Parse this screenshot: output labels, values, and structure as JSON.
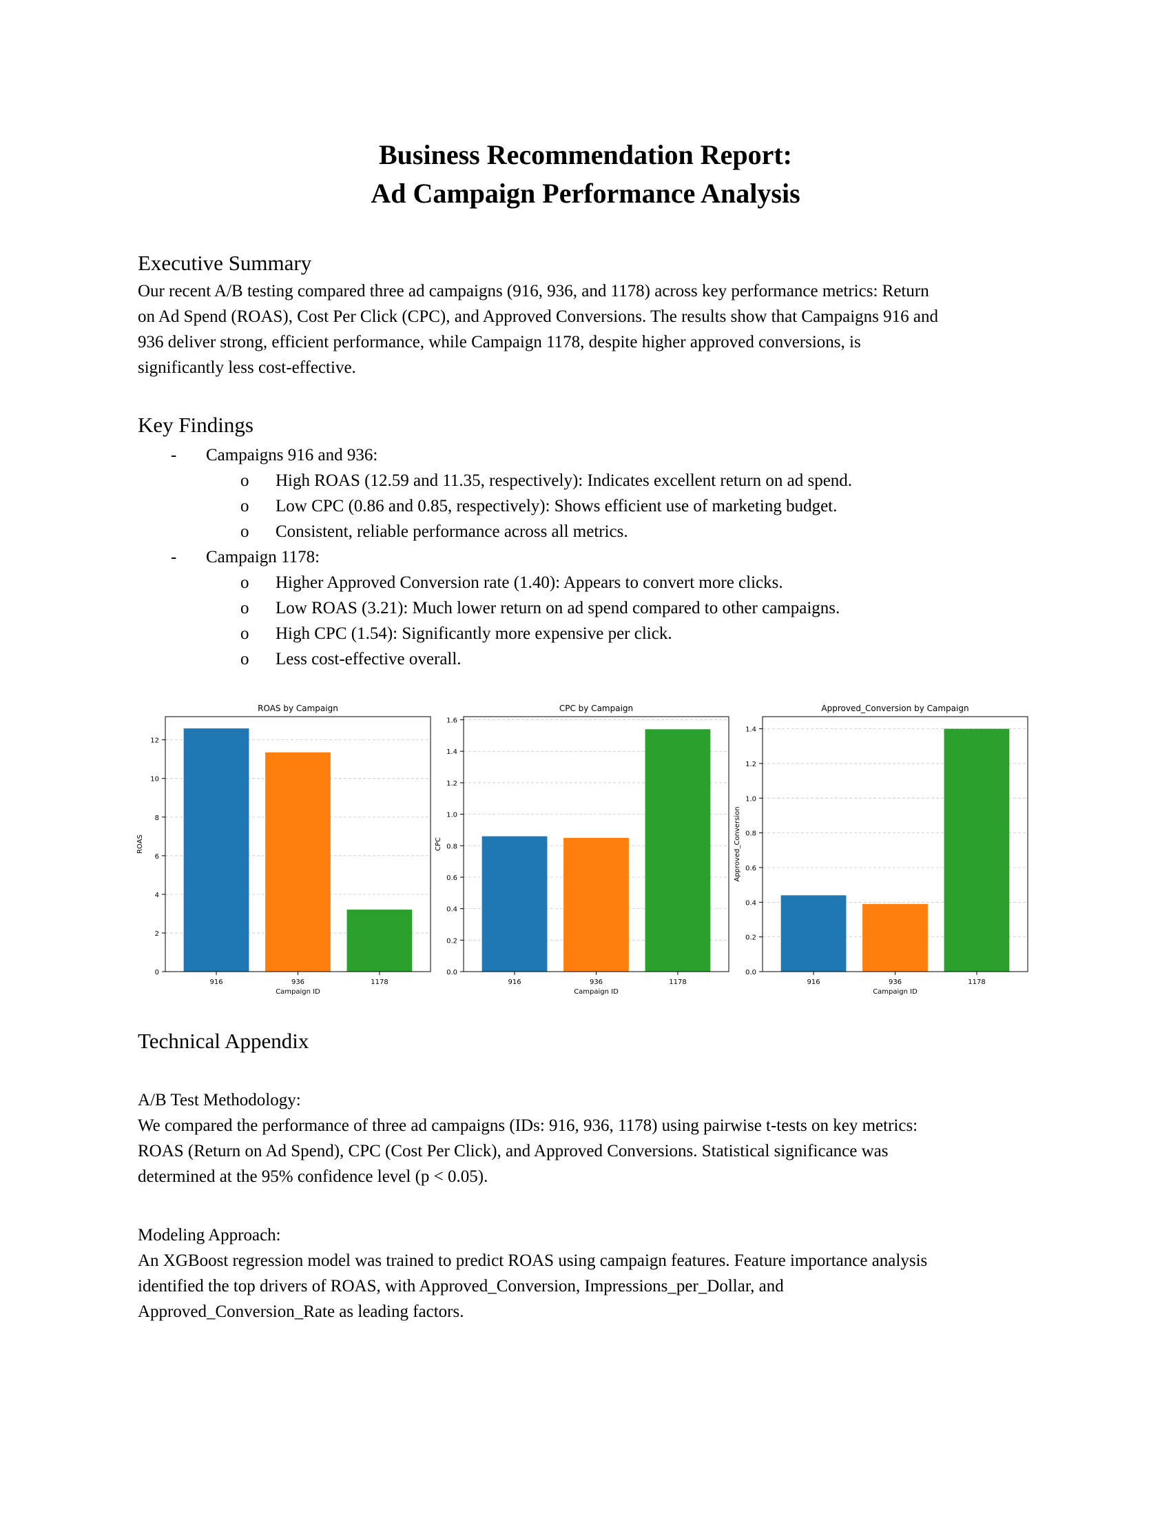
{
  "title": {
    "line1": "Business Recommendation Report:",
    "line2": "Ad Campaign Performance Analysis"
  },
  "executive_summary": {
    "heading": "Executive Summary",
    "lines": [
      "Our recent A/B testing compared three ad campaigns (916, 936, and 1178) across key performance metrics: Return",
      "on Ad Spend (ROAS), Cost Per Click (CPC), and Approved Conversions. The results show that Campaigns 916 and",
      "936 deliver strong, efficient performance, while Campaign 1178, despite higher approved conversions, is",
      "significantly less cost-effective."
    ]
  },
  "key_findings": {
    "heading": "Key Findings",
    "groups": [
      {
        "marker": "-",
        "label": "Campaigns 916 and 936:",
        "items": [
          "High ROAS (12.59 and 11.35, respectively): Indicates excellent return on ad spend.",
          "Low CPC (0.86 and 0.85, respectively): Shows efficient use of marketing budget.",
          "Consistent, reliable performance across all metrics."
        ]
      },
      {
        "marker": "-",
        "label": "Campaign 1178:",
        "items": [
          "Higher Approved Conversion rate (1.40): Appears to convert more clicks.",
          "Low ROAS (3.21): Much lower return on ad spend compared to other campaigns.",
          "High CPC (1.54): Significantly more expensive per click.",
          "Less cost-effective overall."
        ]
      }
    ],
    "sub_marker": "o"
  },
  "chart_data": [
    {
      "type": "bar",
      "title": "ROAS by Campaign",
      "categories": [
        "916",
        "936",
        "1178"
      ],
      "values": [
        12.59,
        11.35,
        3.21
      ],
      "colors": [
        "#1f77b4",
        "#ff7f0e",
        "#2ca02c"
      ],
      "xlabel": "Campaign ID",
      "ylabel": "ROAS",
      "ylim": [
        0,
        13.2
      ],
      "yticks": [
        0,
        2,
        4,
        6,
        8,
        10,
        12
      ],
      "ytick_labels": [
        "0",
        "2",
        "4",
        "6",
        "8",
        "10",
        "12"
      ],
      "grid": "horizontal dashed"
    },
    {
      "type": "bar",
      "title": "CPC by Campaign",
      "categories": [
        "916",
        "936",
        "1178"
      ],
      "values": [
        0.86,
        0.85,
        1.54
      ],
      "colors": [
        "#1f77b4",
        "#ff7f0e",
        "#2ca02c"
      ],
      "xlabel": "Campaign ID",
      "ylabel": "CPC",
      "ylim": [
        0,
        1.62
      ],
      "yticks": [
        0,
        0.2,
        0.4,
        0.6,
        0.8,
        1.0,
        1.2,
        1.4,
        1.6
      ],
      "ytick_labels": [
        "0.0",
        "0.2",
        "0.4",
        "0.6",
        "0.8",
        "1.0",
        "1.2",
        "1.4",
        "1.6"
      ],
      "grid": "horizontal dashed"
    },
    {
      "type": "bar",
      "title": "Approved_Conversion by Campaign",
      "categories": [
        "916",
        "936",
        "1178"
      ],
      "values": [
        0.44,
        0.39,
        1.4
      ],
      "colors": [
        "#1f77b4",
        "#ff7f0e",
        "#2ca02c"
      ],
      "xlabel": "Campaign ID",
      "ylabel": "Approved_Conversion",
      "ylim": [
        0,
        1.47
      ],
      "yticks": [
        0,
        0.2,
        0.4,
        0.6,
        0.8,
        1.0,
        1.2,
        1.4
      ],
      "ytick_labels": [
        "0.0",
        "0.2",
        "0.4",
        "0.6",
        "0.8",
        "1.0",
        "1.2",
        "1.4"
      ],
      "grid": "horizontal dashed"
    }
  ],
  "technical_appendix": {
    "heading": "Technical Appendix",
    "sections": [
      {
        "label": "A/B Test Methodology:",
        "lines": [
          "We compared the performance of three ad campaigns (IDs: 916, 936, 1178) using pairwise t-tests on key metrics:",
          "ROAS (Return on Ad Spend), CPC (Cost Per Click), and Approved Conversions. Statistical significance was",
          "determined at the 95% confidence level (p < 0.05)."
        ]
      },
      {
        "label": "Modeling Approach:",
        "lines": [
          "An XGBoost regression model was trained to predict ROAS using campaign features. Feature importance analysis",
          "identified the top drivers of ROAS, with Approved_Conversion, Impressions_per_Dollar, and",
          "Approved_Conversion_Rate as leading factors."
        ]
      }
    ]
  }
}
